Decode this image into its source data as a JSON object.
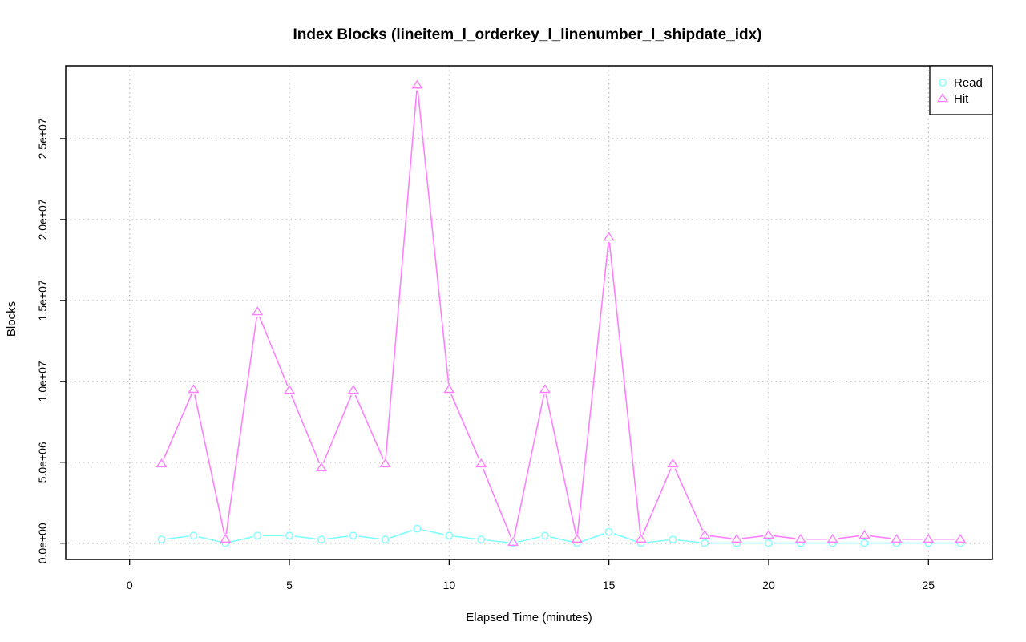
{
  "chart_data": {
    "type": "line",
    "title": "Index Blocks (lineitem_l_orderkey_l_linenumber_l_shipdate_idx)",
    "xlabel": "Elapsed Time (minutes)",
    "ylabel": "Blocks",
    "xlim": [
      -2,
      27
    ],
    "ylim": [
      -1000000,
      29500000
    ],
    "x_ticks": [
      0,
      5,
      10,
      15,
      20,
      25
    ],
    "x_tick_labels": [
      "0",
      "5",
      "10",
      "15",
      "20",
      "25"
    ],
    "y_ticks": [
      0,
      5000000,
      10000000,
      15000000,
      20000000,
      25000000
    ],
    "y_tick_labels": [
      "0.0e+00",
      "5.0e+06",
      "1.0e+07",
      "1.5e+07",
      "2.0e+07",
      "2.5e+07"
    ],
    "grid": true,
    "legend_position": "top-right",
    "x": [
      1,
      2,
      3,
      4,
      5,
      6,
      7,
      8,
      9,
      10,
      11,
      12,
      13,
      14,
      15,
      16,
      17,
      18,
      19,
      20,
      21,
      22,
      23,
      24,
      25,
      26
    ],
    "series": [
      {
        "name": "Read",
        "color": "#80ffff",
        "marker": "circle",
        "values": [
          230000,
          470000,
          10000,
          470000,
          470000,
          230000,
          470000,
          230000,
          900000,
          470000,
          230000,
          10000,
          470000,
          10000,
          700000,
          10000,
          230000,
          10000,
          10000,
          10000,
          10000,
          10000,
          10000,
          10000,
          10000,
          10000
        ]
      },
      {
        "name": "Hit",
        "color": "#ff80ff",
        "marker": "triangle",
        "values": [
          4900000,
          9500000,
          250000,
          14300000,
          9450000,
          4650000,
          9450000,
          4900000,
          28300000,
          9500000,
          4900000,
          50000,
          9500000,
          250000,
          18900000,
          250000,
          4900000,
          500000,
          250000,
          500000,
          250000,
          250000,
          500000,
          250000,
          250000,
          250000
        ]
      }
    ]
  }
}
